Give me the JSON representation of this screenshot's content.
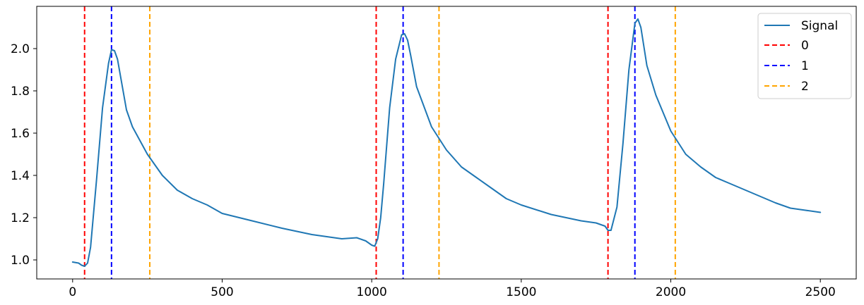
{
  "chart_data": {
    "type": "line",
    "title": "",
    "xlabel": "",
    "ylabel": "",
    "xlim": [
      -120,
      2620
    ],
    "ylim": [
      0.91,
      2.2
    ],
    "xticks": [
      0,
      500,
      1000,
      1500,
      2000,
      2500
    ],
    "xtick_labels": [
      "0",
      "500",
      "1000",
      "1500",
      "2000",
      "2500"
    ],
    "yticks": [
      1.0,
      1.2,
      1.4,
      1.6,
      1.8,
      2.0
    ],
    "ytick_labels": [
      "1.0",
      "1.2",
      "1.4",
      "1.6",
      "1.8",
      "2.0"
    ],
    "grid": false,
    "legend_position": "top-right",
    "colors": {
      "signal": "#1f77b4",
      "marker_0": "#ff0000",
      "marker_1": "#0000ff",
      "marker_2": "#ffa500"
    },
    "series": [
      {
        "name": "Signal",
        "x": [
          0,
          20,
          30,
          40,
          50,
          60,
          80,
          100,
          120,
          130,
          140,
          150,
          160,
          180,
          200,
          250,
          300,
          350,
          400,
          450,
          500,
          600,
          700,
          800,
          900,
          950,
          980,
          1000,
          1010,
          1020,
          1030,
          1040,
          1060,
          1080,
          1100,
          1110,
          1120,
          1130,
          1150,
          1200,
          1250,
          1300,
          1350,
          1400,
          1450,
          1500,
          1600,
          1700,
          1750,
          1780,
          1790,
          1800,
          1820,
          1840,
          1860,
          1880,
          1890,
          1900,
          1920,
          1950,
          2000,
          2050,
          2100,
          2150,
          2200,
          2250,
          2300,
          2350,
          2400,
          2450,
          2500
        ],
        "y": [
          0.99,
          0.985,
          0.975,
          0.97,
          0.985,
          1.06,
          1.38,
          1.72,
          1.93,
          1.995,
          1.99,
          1.95,
          1.87,
          1.71,
          1.63,
          1.5,
          1.4,
          1.33,
          1.29,
          1.26,
          1.22,
          1.185,
          1.15,
          1.12,
          1.1,
          1.105,
          1.09,
          1.07,
          1.065,
          1.1,
          1.2,
          1.36,
          1.72,
          1.95,
          2.065,
          2.07,
          2.04,
          1.97,
          1.82,
          1.63,
          1.52,
          1.44,
          1.39,
          1.34,
          1.29,
          1.26,
          1.215,
          1.185,
          1.175,
          1.16,
          1.14,
          1.14,
          1.25,
          1.55,
          1.9,
          2.12,
          2.14,
          2.1,
          1.92,
          1.78,
          1.61,
          1.5,
          1.44,
          1.39,
          1.36,
          1.33,
          1.3,
          1.27,
          1.245,
          1.235,
          1.225
        ]
      },
      {
        "name": "0",
        "type": "vline",
        "x": [
          40,
          1015,
          1790
        ]
      },
      {
        "name": "1",
        "type": "vline",
        "x": [
          130,
          1105,
          1880
        ]
      },
      {
        "name": "2",
        "type": "vline",
        "x": [
          258,
          1225,
          2015
        ]
      }
    ]
  }
}
